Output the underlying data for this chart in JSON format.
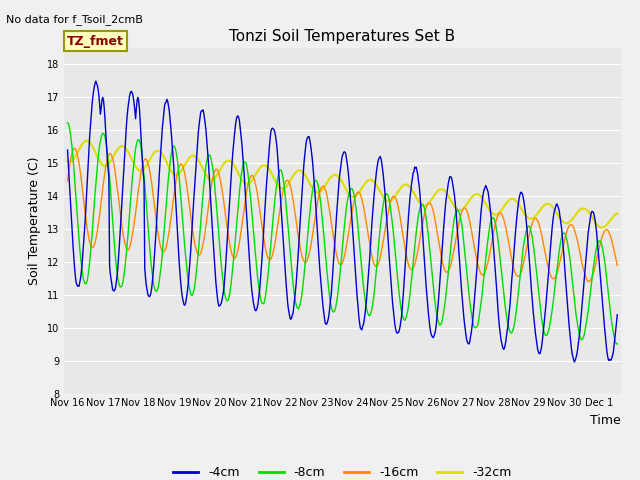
{
  "title": "Tonzi Soil Temperatures Set B",
  "top_left_text": "No data for f_Tsoil_2cmB",
  "box_label": "TZ_fmet",
  "ylabel": "Soil Temperature (C)",
  "xlabel": "Time",
  "ylim": [
    8.0,
    18.5
  ],
  "yticks": [
    8.0,
    9.0,
    10.0,
    11.0,
    12.0,
    13.0,
    14.0,
    15.0,
    16.0,
    17.0,
    18.0
  ],
  "colors": {
    "4cm": "#0000cc",
    "8cm": "#00dd00",
    "16cm": "#ff8800",
    "32cm": "#dddd00"
  },
  "legend_labels": [
    "-4cm",
    "-8cm",
    "-16cm",
    "-32cm"
  ],
  "fig_bg": "#f0f0f0",
  "plot_bg": "#e8e8e8",
  "grid_color": "#ffffff"
}
